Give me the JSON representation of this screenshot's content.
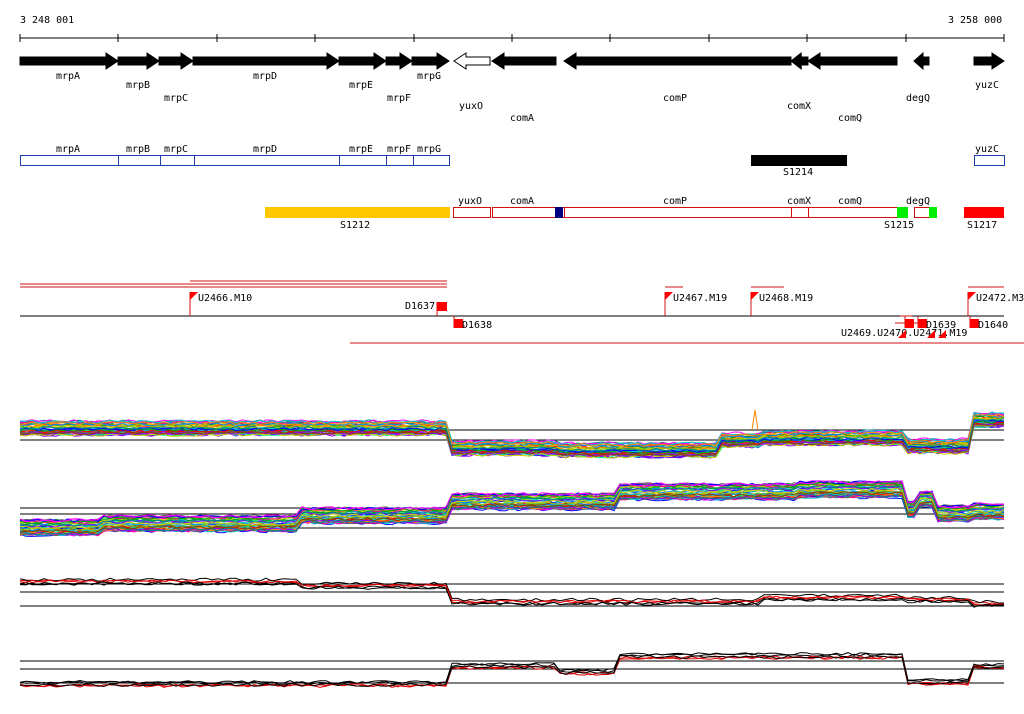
{
  "axis": {
    "start_label": "3 248 001",
    "end_label": "3 258 000"
  },
  "colors": {
    "gene_fill": "#000000",
    "gene_outline_blue": "#1f3fb0",
    "gene_outline_red": "#d01010",
    "segment_yellow": "#ffc800",
    "segment_black": "#000000",
    "segment_red": "#ff0000",
    "marker_green": "#00ee00",
    "marker_navy": "#000080"
  },
  "genes_row1": [
    {
      "label": "mrpA",
      "dir": "fwd",
      "filled": true
    },
    {
      "label": "mrpB",
      "dir": "fwd",
      "filled": true
    },
    {
      "label": "mrpC",
      "dir": "fwd",
      "filled": true
    },
    {
      "label": "mrpD",
      "dir": "fwd",
      "filled": true
    },
    {
      "label": "mrpE",
      "dir": "fwd",
      "filled": true
    },
    {
      "label": "mrpF",
      "dir": "fwd",
      "filled": true
    },
    {
      "label": "mrpG",
      "dir": "fwd",
      "filled": true
    },
    {
      "label": "yuxO",
      "dir": "rev",
      "filled": false
    },
    {
      "label": "comA",
      "dir": "rev",
      "filled": true
    },
    {
      "label": "comP",
      "dir": "rev",
      "filled": true
    },
    {
      "label": "comX",
      "dir": "rev",
      "filled": true
    },
    {
      "label": "comQ",
      "dir": "rev",
      "filled": true
    },
    {
      "label": "degQ",
      "dir": "rev",
      "filled": true
    },
    {
      "label": "yuzC",
      "dir": "fwd",
      "filled": true
    }
  ],
  "operon_blue": [
    {
      "label": "mrpA"
    },
    {
      "label": "mrpB"
    },
    {
      "label": "mrpC"
    },
    {
      "label": "mrpD"
    },
    {
      "label": "mrpE"
    },
    {
      "label": "mrpF"
    },
    {
      "label": "mrpG"
    },
    {
      "label": "yuzC"
    }
  ],
  "segment_s1214": {
    "label": "S1214"
  },
  "operon_red": [
    {
      "label": "yuxO"
    },
    {
      "label": "comA"
    },
    {
      "label": "comP"
    },
    {
      "label": "comX"
    },
    {
      "label": "comQ"
    },
    {
      "label": "degQ"
    }
  ],
  "segments_row3": [
    {
      "label": "S1212"
    },
    {
      "label": "S1215"
    },
    {
      "label": "S1217"
    }
  ],
  "features_upper": [
    {
      "label": "U2466.M10"
    },
    {
      "label": "D1637"
    },
    {
      "label": "U2467.M19"
    },
    {
      "label": "U2468.M19"
    },
    {
      "label": "U2472.M3"
    }
  ],
  "features_lower": [
    {
      "label": "D1638"
    },
    {
      "label": "U2469.U2470.U2471.M19"
    },
    {
      "label": "D1639"
    },
    {
      "label": "D1640"
    }
  ],
  "expression_panels": [
    {
      "name": "expression-panel-forward-many"
    },
    {
      "name": "expression-panel-reverse-many"
    },
    {
      "name": "expression-panel-forward-summary"
    },
    {
      "name": "expression-panel-reverse-summary"
    }
  ]
}
